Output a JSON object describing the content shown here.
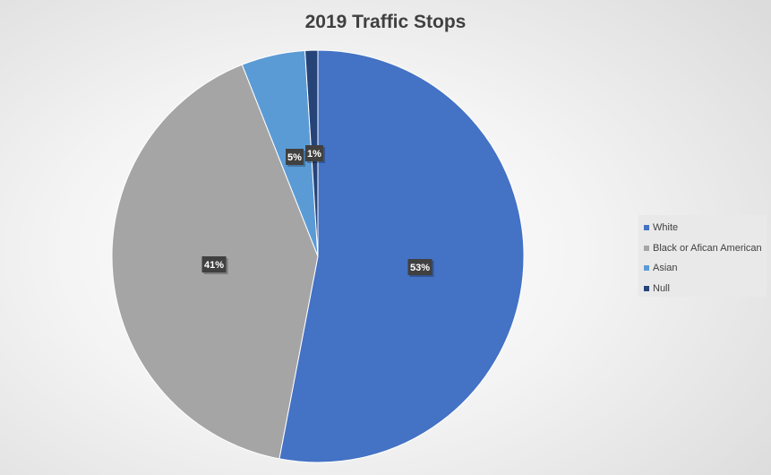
{
  "chart_data": {
    "type": "pie",
    "title": "2019 Traffic Stops",
    "categories": [
      "White",
      "Black or Afican American",
      "Asian",
      "Null"
    ],
    "values": [
      53,
      41,
      5,
      1
    ],
    "data_labels": [
      "53%",
      "41%",
      "5%",
      "1%"
    ],
    "colors": [
      "#4472c4",
      "#a5a5a5",
      "#5b9bd5",
      "#264478"
    ],
    "legend_placement": "right"
  }
}
